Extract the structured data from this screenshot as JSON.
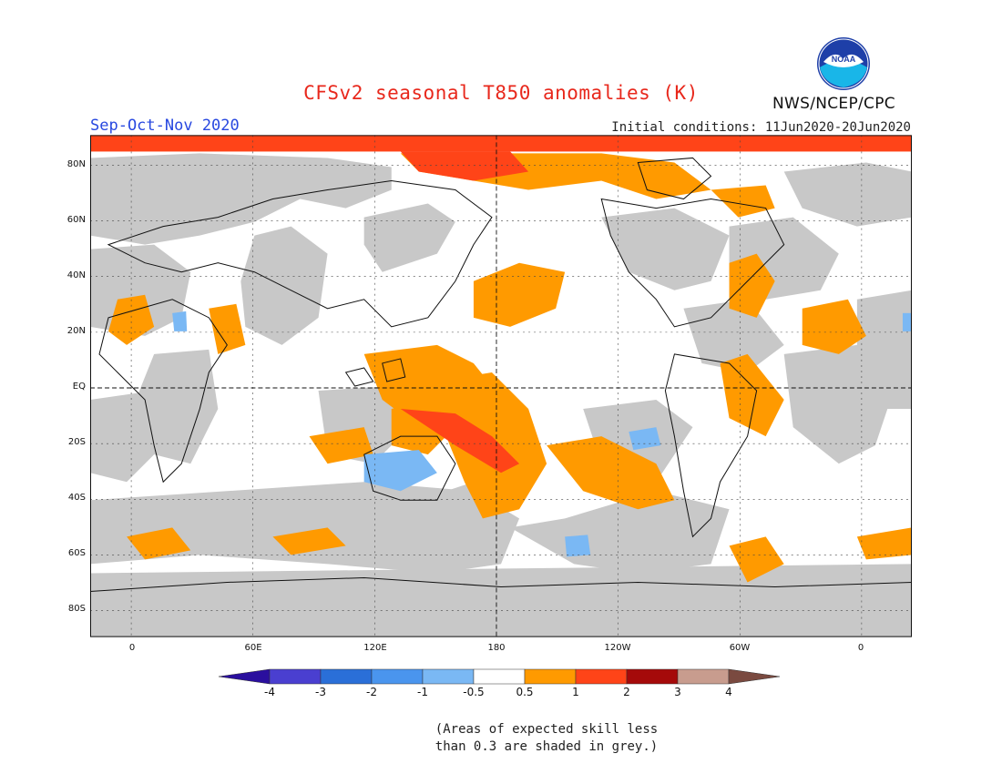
{
  "header": {
    "title": "CFSv2 seasonal T850 anomalies (K)",
    "season": "Sep-Oct-Nov 2020",
    "initial_conditions": "Initial conditions: 11Jun2020-20Jun2020",
    "agency": "NWS/NCEP/CPC",
    "logo_text": "NOAA"
  },
  "axes": {
    "lat_labels": [
      "80N",
      "60N",
      "40N",
      "20N",
      "EQ",
      "20S",
      "40S",
      "60S",
      "80S"
    ],
    "lon_labels": [
      "0",
      "60E",
      "120E",
      "180",
      "120W",
      "60W",
      "0"
    ]
  },
  "colorbar": {
    "labels": [
      "-4",
      "-3",
      "-2",
      "-1",
      "-0.5",
      "0.5",
      "1",
      "2",
      "3",
      "4"
    ],
    "colors": [
      "#2a0f9e",
      "#4a3fd0",
      "#2a6fd8",
      "#4a95ee",
      "#7ab8f4",
      "#ffffff",
      "#ff9a00",
      "#ff4418",
      "#a50a0a",
      "#c89c8e",
      "#7a4a40"
    ]
  },
  "legend_note": {
    "line1": "(Areas of expected skill less",
    "line2": "than 0.3 are shaded in grey.)"
  },
  "colors": {
    "grey_low_skill": "#c8c8c8",
    "title_red": "#e8281c",
    "season_blue": "#2848e0"
  }
}
